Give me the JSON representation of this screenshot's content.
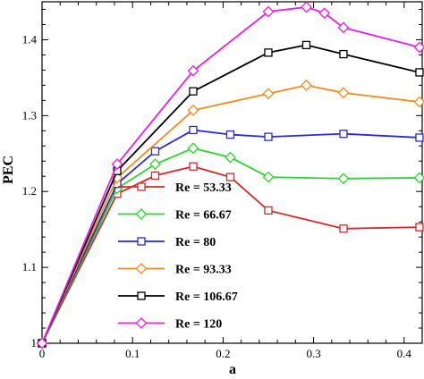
{
  "chart_data": {
    "type": "line",
    "xlabel": "a",
    "ylabel": "PEC",
    "xlim": [
      0,
      0.42
    ],
    "ylim": [
      1.0,
      1.45
    ],
    "xticks": [
      0,
      0.1,
      0.2,
      0.3,
      0.4
    ],
    "xtick_labels": [
      "0",
      "0.1",
      "0.2",
      "0.3",
      "0.4"
    ],
    "yticks": [
      1.0,
      1.1,
      1.2,
      1.3,
      1.4
    ],
    "ytick_labels": [
      "1",
      "1.1",
      "1.2",
      "1.3",
      "1.4"
    ],
    "grid": false,
    "legend_position": "lower-center",
    "series": [
      {
        "name": "Re  =  53.33",
        "color": "#d42a2a",
        "marker": "square",
        "x": [
          0,
          0.083,
          0.125,
          0.167,
          0.208,
          0.25,
          0.333,
          0.417
        ],
        "y": [
          1.0,
          1.197,
          1.221,
          1.233,
          1.219,
          1.175,
          1.151,
          1.153
        ]
      },
      {
        "name": "Re  =  66.67",
        "color": "#2dd42d",
        "marker": "diamond",
        "x": [
          0,
          0.083,
          0.125,
          0.167,
          0.208,
          0.25,
          0.333,
          0.417
        ],
        "y": [
          1.0,
          1.204,
          1.236,
          1.257,
          1.245,
          1.219,
          1.217,
          1.218
        ]
      },
      {
        "name": "Re  =  80",
        "color": "#2a2ad4",
        "marker": "square",
        "x": [
          0,
          0.083,
          0.125,
          0.167,
          0.208,
          0.25,
          0.333,
          0.417
        ],
        "y": [
          1.0,
          1.21,
          1.253,
          1.281,
          1.275,
          1.272,
          1.276,
          1.271
        ]
      },
      {
        "name": "Re  =  93.33",
        "color": "#f08c1e",
        "marker": "diamond",
        "x": [
          0,
          0.083,
          0.167,
          0.25,
          0.292,
          0.333,
          0.417
        ],
        "y": [
          1.0,
          1.218,
          1.307,
          1.329,
          1.34,
          1.33,
          1.318
        ]
      },
      {
        "name": "Re  =  106.67",
        "color": "#000000",
        "marker": "square",
        "x": [
          0,
          0.083,
          0.167,
          0.25,
          0.292,
          0.333,
          0.417
        ],
        "y": [
          1.0,
          1.227,
          1.332,
          1.383,
          1.393,
          1.381,
          1.357
        ]
      },
      {
        "name": "Re  =  120",
        "color": "#e61ee6",
        "marker": "diamond",
        "x": [
          0,
          0.083,
          0.167,
          0.25,
          0.292,
          0.312,
          0.333,
          0.417
        ],
        "y": [
          1.0,
          1.236,
          1.359,
          1.437,
          1.443,
          1.435,
          1.416,
          1.39
        ]
      }
    ]
  }
}
